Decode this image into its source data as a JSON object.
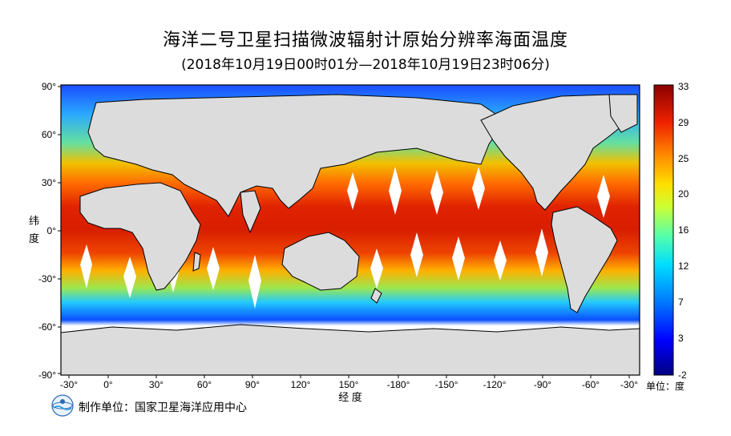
{
  "title": "海洋二号卫星扫描微波辐射计原始分辨率海面温度",
  "subtitle": "(2018年10月19日00时01分—2018年10月19日23时06分)",
  "axes": {
    "y_label_1": "纬",
    "y_label_2": "度",
    "x_label": "经 度",
    "lat_ticks": [
      "90°",
      "60°",
      "30°",
      "0°",
      "-30°",
      "-60°",
      "-90°"
    ],
    "lon_ticks": [
      "-30°",
      "0°",
      "30°",
      "60°",
      "90°",
      "120°",
      "150°",
      "-180°",
      "-150°",
      "-120°",
      "-90°",
      "-60°",
      "-30°"
    ]
  },
  "colorbar": {
    "ticks": [
      "33",
      "29",
      "25",
      "20",
      "16",
      "12",
      "7",
      "3",
      "-2"
    ],
    "unit": "单位：度",
    "colors": [
      "#000080",
      "#0000ff",
      "#0066ff",
      "#00ccff",
      "#33ffcc",
      "#99ff66",
      "#ffff00",
      "#ffaa00",
      "#ff4400",
      "#cc0000",
      "#800000"
    ]
  },
  "footer": {
    "producer": "制作单位：国家卫星海洋应用中心",
    "logo_icon": "soa-logo-icon"
  }
}
